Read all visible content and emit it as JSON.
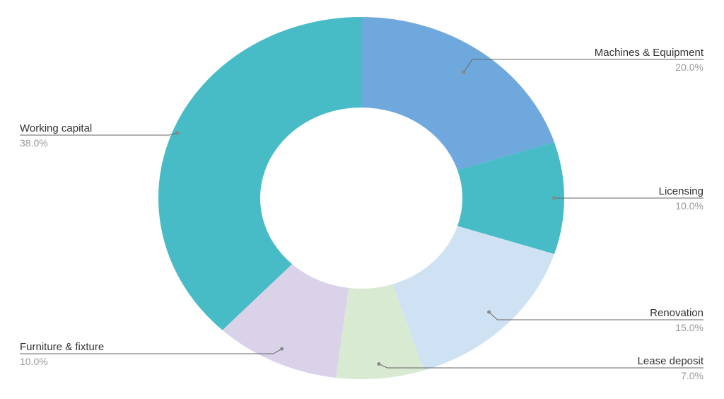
{
  "chart_data": {
    "type": "pie",
    "variant": "donut",
    "title": "",
    "slices": [
      {
        "label": "Machines & Equipment",
        "value": 20.0,
        "display": "20.0%",
        "color": "#6fa8dc"
      },
      {
        "label": "Licensing",
        "value": 10.0,
        "display": "10.0%",
        "color": "#47bbc6"
      },
      {
        "label": "Renovation",
        "value": 15.0,
        "display": "15.0%",
        "color": "#cfe2f3"
      },
      {
        "label": "Lease deposit",
        "value": 7.0,
        "display": "7.0%",
        "color": "#d9ead3"
      },
      {
        "label": "Furniture & fixture",
        "value": 10.0,
        "display": "10.0%",
        "color": "#d9d2e9"
      },
      {
        "label": "Working capital",
        "value": 38.0,
        "display": "38.0%",
        "color": "#47bbc6"
      }
    ],
    "legend": "none (callout labels beside slices)"
  }
}
